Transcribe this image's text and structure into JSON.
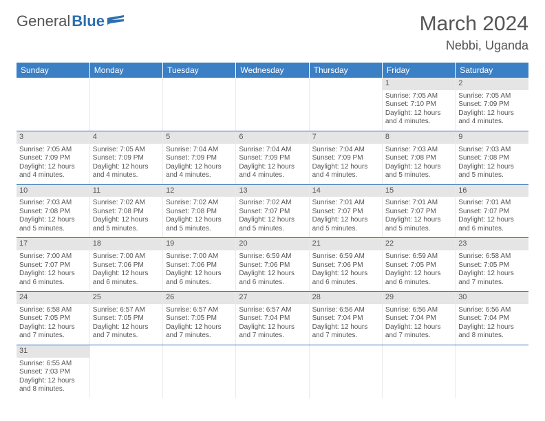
{
  "logo": {
    "text1": "General",
    "text2": "Blue"
  },
  "title": "March 2024",
  "location": "Nebbi, Uganda",
  "colors": {
    "header_bg": "#3b7fc4",
    "header_text": "#ffffff",
    "daynum_bg": "#e5e5e5",
    "row_border": "#2f6fb0",
    "text": "#555555"
  },
  "day_headers": [
    "Sunday",
    "Monday",
    "Tuesday",
    "Wednesday",
    "Thursday",
    "Friday",
    "Saturday"
  ],
  "weeks": [
    [
      {
        "n": "",
        "l": [
          "",
          "",
          "",
          ""
        ]
      },
      {
        "n": "",
        "l": [
          "",
          "",
          "",
          ""
        ]
      },
      {
        "n": "",
        "l": [
          "",
          "",
          "",
          ""
        ]
      },
      {
        "n": "",
        "l": [
          "",
          "",
          "",
          ""
        ]
      },
      {
        "n": "",
        "l": [
          "",
          "",
          "",
          ""
        ]
      },
      {
        "n": "1",
        "l": [
          "Sunrise: 7:05 AM",
          "Sunset: 7:10 PM",
          "Daylight: 12 hours",
          "and 4 minutes."
        ]
      },
      {
        "n": "2",
        "l": [
          "Sunrise: 7:05 AM",
          "Sunset: 7:09 PM",
          "Daylight: 12 hours",
          "and 4 minutes."
        ]
      }
    ],
    [
      {
        "n": "3",
        "l": [
          "Sunrise: 7:05 AM",
          "Sunset: 7:09 PM",
          "Daylight: 12 hours",
          "and 4 minutes."
        ]
      },
      {
        "n": "4",
        "l": [
          "Sunrise: 7:05 AM",
          "Sunset: 7:09 PM",
          "Daylight: 12 hours",
          "and 4 minutes."
        ]
      },
      {
        "n": "5",
        "l": [
          "Sunrise: 7:04 AM",
          "Sunset: 7:09 PM",
          "Daylight: 12 hours",
          "and 4 minutes."
        ]
      },
      {
        "n": "6",
        "l": [
          "Sunrise: 7:04 AM",
          "Sunset: 7:09 PM",
          "Daylight: 12 hours",
          "and 4 minutes."
        ]
      },
      {
        "n": "7",
        "l": [
          "Sunrise: 7:04 AM",
          "Sunset: 7:09 PM",
          "Daylight: 12 hours",
          "and 4 minutes."
        ]
      },
      {
        "n": "8",
        "l": [
          "Sunrise: 7:03 AM",
          "Sunset: 7:08 PM",
          "Daylight: 12 hours",
          "and 5 minutes."
        ]
      },
      {
        "n": "9",
        "l": [
          "Sunrise: 7:03 AM",
          "Sunset: 7:08 PM",
          "Daylight: 12 hours",
          "and 5 minutes."
        ]
      }
    ],
    [
      {
        "n": "10",
        "l": [
          "Sunrise: 7:03 AM",
          "Sunset: 7:08 PM",
          "Daylight: 12 hours",
          "and 5 minutes."
        ]
      },
      {
        "n": "11",
        "l": [
          "Sunrise: 7:02 AM",
          "Sunset: 7:08 PM",
          "Daylight: 12 hours",
          "and 5 minutes."
        ]
      },
      {
        "n": "12",
        "l": [
          "Sunrise: 7:02 AM",
          "Sunset: 7:08 PM",
          "Daylight: 12 hours",
          "and 5 minutes."
        ]
      },
      {
        "n": "13",
        "l": [
          "Sunrise: 7:02 AM",
          "Sunset: 7:07 PM",
          "Daylight: 12 hours",
          "and 5 minutes."
        ]
      },
      {
        "n": "14",
        "l": [
          "Sunrise: 7:01 AM",
          "Sunset: 7:07 PM",
          "Daylight: 12 hours",
          "and 5 minutes."
        ]
      },
      {
        "n": "15",
        "l": [
          "Sunrise: 7:01 AM",
          "Sunset: 7:07 PM",
          "Daylight: 12 hours",
          "and 5 minutes."
        ]
      },
      {
        "n": "16",
        "l": [
          "Sunrise: 7:01 AM",
          "Sunset: 7:07 PM",
          "Daylight: 12 hours",
          "and 6 minutes."
        ]
      }
    ],
    [
      {
        "n": "17",
        "l": [
          "Sunrise: 7:00 AM",
          "Sunset: 7:07 PM",
          "Daylight: 12 hours",
          "and 6 minutes."
        ]
      },
      {
        "n": "18",
        "l": [
          "Sunrise: 7:00 AM",
          "Sunset: 7:06 PM",
          "Daylight: 12 hours",
          "and 6 minutes."
        ]
      },
      {
        "n": "19",
        "l": [
          "Sunrise: 7:00 AM",
          "Sunset: 7:06 PM",
          "Daylight: 12 hours",
          "and 6 minutes."
        ]
      },
      {
        "n": "20",
        "l": [
          "Sunrise: 6:59 AM",
          "Sunset: 7:06 PM",
          "Daylight: 12 hours",
          "and 6 minutes."
        ]
      },
      {
        "n": "21",
        "l": [
          "Sunrise: 6:59 AM",
          "Sunset: 7:06 PM",
          "Daylight: 12 hours",
          "and 6 minutes."
        ]
      },
      {
        "n": "22",
        "l": [
          "Sunrise: 6:59 AM",
          "Sunset: 7:05 PM",
          "Daylight: 12 hours",
          "and 6 minutes."
        ]
      },
      {
        "n": "23",
        "l": [
          "Sunrise: 6:58 AM",
          "Sunset: 7:05 PM",
          "Daylight: 12 hours",
          "and 7 minutes."
        ]
      }
    ],
    [
      {
        "n": "24",
        "l": [
          "Sunrise: 6:58 AM",
          "Sunset: 7:05 PM",
          "Daylight: 12 hours",
          "and 7 minutes."
        ]
      },
      {
        "n": "25",
        "l": [
          "Sunrise: 6:57 AM",
          "Sunset: 7:05 PM",
          "Daylight: 12 hours",
          "and 7 minutes."
        ]
      },
      {
        "n": "26",
        "l": [
          "Sunrise: 6:57 AM",
          "Sunset: 7:05 PM",
          "Daylight: 12 hours",
          "and 7 minutes."
        ]
      },
      {
        "n": "27",
        "l": [
          "Sunrise: 6:57 AM",
          "Sunset: 7:04 PM",
          "Daylight: 12 hours",
          "and 7 minutes."
        ]
      },
      {
        "n": "28",
        "l": [
          "Sunrise: 6:56 AM",
          "Sunset: 7:04 PM",
          "Daylight: 12 hours",
          "and 7 minutes."
        ]
      },
      {
        "n": "29",
        "l": [
          "Sunrise: 6:56 AM",
          "Sunset: 7:04 PM",
          "Daylight: 12 hours",
          "and 7 minutes."
        ]
      },
      {
        "n": "30",
        "l": [
          "Sunrise: 6:56 AM",
          "Sunset: 7:04 PM",
          "Daylight: 12 hours",
          "and 8 minutes."
        ]
      }
    ],
    [
      {
        "n": "31",
        "l": [
          "Sunrise: 6:55 AM",
          "Sunset: 7:03 PM",
          "Daylight: 12 hours",
          "and 8 minutes."
        ]
      },
      {
        "n": "",
        "l": [
          "",
          "",
          "",
          ""
        ]
      },
      {
        "n": "",
        "l": [
          "",
          "",
          "",
          ""
        ]
      },
      {
        "n": "",
        "l": [
          "",
          "",
          "",
          ""
        ]
      },
      {
        "n": "",
        "l": [
          "",
          "",
          "",
          ""
        ]
      },
      {
        "n": "",
        "l": [
          "",
          "",
          "",
          ""
        ]
      },
      {
        "n": "",
        "l": [
          "",
          "",
          "",
          ""
        ]
      }
    ]
  ]
}
